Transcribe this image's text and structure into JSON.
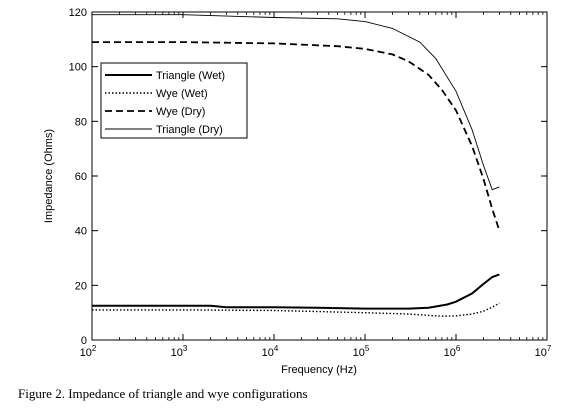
{
  "caption": "Figure 2. Impedance of triangle and wye configurations",
  "chart_data": {
    "type": "line",
    "xscale": "log",
    "xlabel": "Frequency (Hz)",
    "ylabel": "Impedance (Ohms)",
    "xlim": [
      100,
      10000000
    ],
    "ylim": [
      0,
      120
    ],
    "grid": false,
    "legend_position": "upper-left",
    "x_ticks": [
      100,
      1000,
      10000,
      100000,
      1000000,
      10000000
    ],
    "x_tick_labels": [
      {
        "base": "10",
        "exp": "2"
      },
      {
        "base": "10",
        "exp": "3"
      },
      {
        "base": "10",
        "exp": "4"
      },
      {
        "base": "10",
        "exp": "5"
      },
      {
        "base": "10",
        "exp": "6"
      },
      {
        "base": "10",
        "exp": "7"
      }
    ],
    "y_ticks": [
      0,
      20,
      40,
      60,
      80,
      100,
      120
    ],
    "series": [
      {
        "name": "Triangle (Wet)",
        "style": "solid-thick",
        "color": "#000000",
        "points": [
          [
            100,
            12.5
          ],
          [
            1000,
            12.5
          ],
          [
            2000,
            12.5
          ],
          [
            3000,
            12.0
          ],
          [
            10000,
            12.0
          ],
          [
            30000,
            11.8
          ],
          [
            100000,
            11.5
          ],
          [
            300000,
            11.5
          ],
          [
            500000,
            11.8
          ],
          [
            800000,
            13.0
          ],
          [
            1000000,
            14.0
          ],
          [
            1500000,
            17.0
          ],
          [
            2000000,
            20.5
          ],
          [
            2500000,
            23.0
          ],
          [
            3000000,
            24.0
          ]
        ]
      },
      {
        "name": "Wye (Wet)",
        "style": "dotted",
        "color": "#000000",
        "points": [
          [
            100,
            11.0
          ],
          [
            1000,
            11.0
          ],
          [
            10000,
            10.8
          ],
          [
            100000,
            10.0
          ],
          [
            300000,
            9.5
          ],
          [
            500000,
            9.0
          ],
          [
            700000,
            8.7
          ],
          [
            1000000,
            8.8
          ],
          [
            1500000,
            9.5
          ],
          [
            2000000,
            10.5
          ],
          [
            2500000,
            12.0
          ],
          [
            3000000,
            13.5
          ]
        ]
      },
      {
        "name": "Wye (Dry)",
        "style": "dashed",
        "color": "#000000",
        "points": [
          [
            100,
            109
          ],
          [
            1000,
            109
          ],
          [
            10000,
            108.5
          ],
          [
            50000,
            107.5
          ],
          [
            100000,
            106.5
          ],
          [
            200000,
            104.5
          ],
          [
            300000,
            102
          ],
          [
            500000,
            97
          ],
          [
            700000,
            91.5
          ],
          [
            1000000,
            84
          ],
          [
            1500000,
            71
          ],
          [
            2000000,
            59
          ],
          [
            2500000,
            48
          ],
          [
            3000000,
            40
          ]
        ]
      },
      {
        "name": "Triangle (Dry)",
        "style": "solid-thin",
        "color": "#000000",
        "points": [
          [
            100,
            119
          ],
          [
            1000,
            119
          ],
          [
            10000,
            118
          ],
          [
            50000,
            117.5
          ],
          [
            100000,
            116.5
          ],
          [
            200000,
            114
          ],
          [
            400000,
            109
          ],
          [
            600000,
            103
          ],
          [
            1000000,
            91
          ],
          [
            1500000,
            77
          ],
          [
            2000000,
            64
          ],
          [
            2500000,
            55
          ],
          [
            3000000,
            56
          ]
        ]
      }
    ]
  }
}
